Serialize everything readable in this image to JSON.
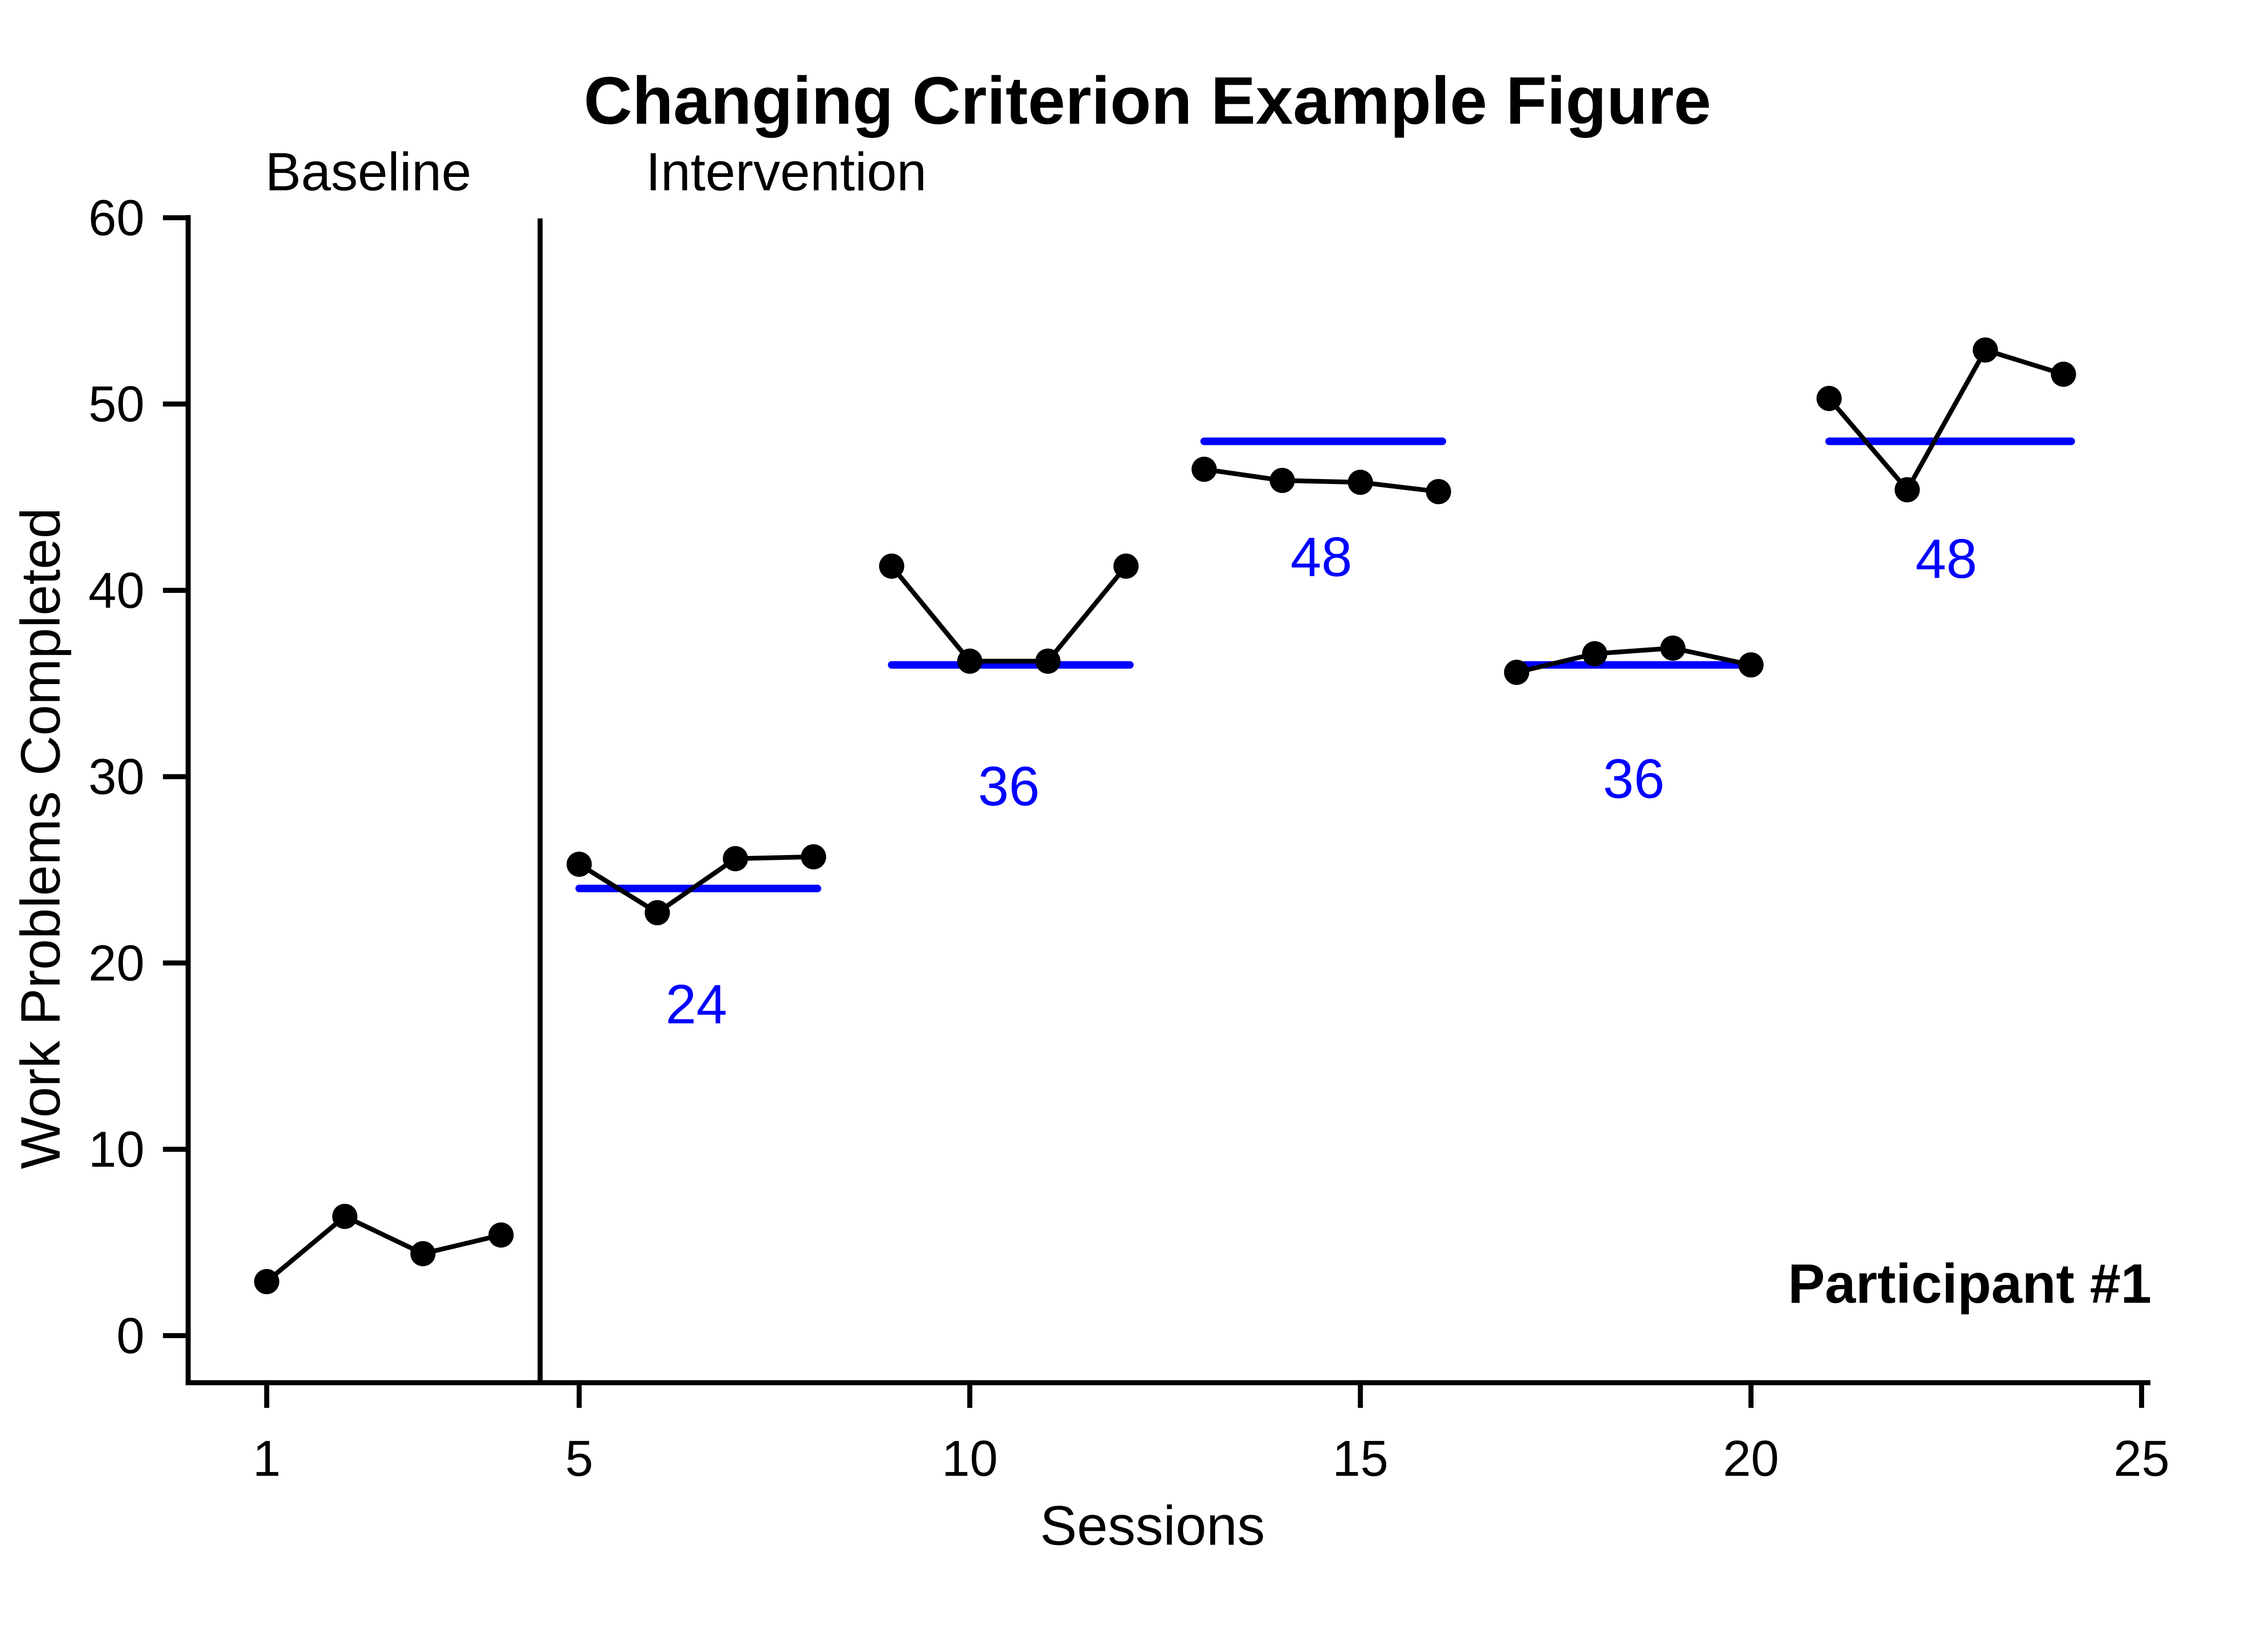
{
  "chart_data": {
    "type": "line",
    "title": "Changing Criterion Example Figure",
    "xlabel": "Sessions",
    "ylabel": "Work Problems Completed",
    "x_ticks": [
      1,
      5,
      10,
      15,
      20,
      25
    ],
    "y_ticks": [
      0,
      10,
      20,
      30,
      40,
      50,
      60
    ],
    "xlim": [
      1,
      25
    ],
    "ylim": [
      0,
      60
    ],
    "grid": false,
    "legend": "none",
    "point_color": "#000000",
    "line_color": "#000000",
    "criterion_color": "#0000ff",
    "phase_change_line_x": 4.5,
    "phase_labels": [
      {
        "text": "Baseline",
        "x": 2.3
      },
      {
        "text": "Intervention",
        "x": 7.65
      }
    ],
    "annotation": {
      "text": "Participant #1",
      "x": 22.8,
      "y": 2.8
    },
    "phases": [
      {
        "sessions": [
          1,
          2,
          3,
          4
        ],
        "values": [
          2.9,
          6.4,
          4.4,
          5.4
        ],
        "criterion": null
      },
      {
        "sessions": [
          5,
          6,
          7,
          8
        ],
        "values": [
          25.3,
          22.7,
          25.6,
          25.7
        ],
        "criterion": {
          "value": 24,
          "label": "24",
          "x_start": 5,
          "x_end": 8.05,
          "label_x": 6.5,
          "label_y": 17.8
        }
      },
      {
        "sessions": [
          9,
          10,
          11,
          12
        ],
        "values": [
          41.3,
          36.2,
          36.2,
          41.3
        ],
        "criterion": {
          "value": 36,
          "label": "36",
          "x_start": 9,
          "x_end": 12.05,
          "label_x": 10.5,
          "label_y": 29.5
        }
      },
      {
        "sessions": [
          13,
          14,
          15,
          16
        ],
        "values": [
          46.5,
          45.9,
          45.8,
          45.3
        ],
        "criterion": {
          "value": 48,
          "label": "48",
          "x_start": 13,
          "x_end": 16.05,
          "label_x": 14.5,
          "label_y": 41.8
        }
      },
      {
        "sessions": [
          17,
          18,
          19,
          20
        ],
        "values": [
          35.6,
          36.6,
          36.9,
          36.0
        ],
        "criterion": {
          "value": 36,
          "label": "36",
          "x_start": 17.1,
          "x_end": 19.9,
          "label_x": 18.5,
          "label_y": 29.9
        }
      },
      {
        "sessions": [
          21,
          22,
          23,
          24
        ],
        "values": [
          50.3,
          45.4,
          52.9,
          51.6
        ],
        "criterion": {
          "value": 48,
          "label": "48",
          "x_start": 21,
          "x_end": 24.1,
          "label_x": 22.5,
          "label_y": 41.7
        }
      }
    ]
  }
}
